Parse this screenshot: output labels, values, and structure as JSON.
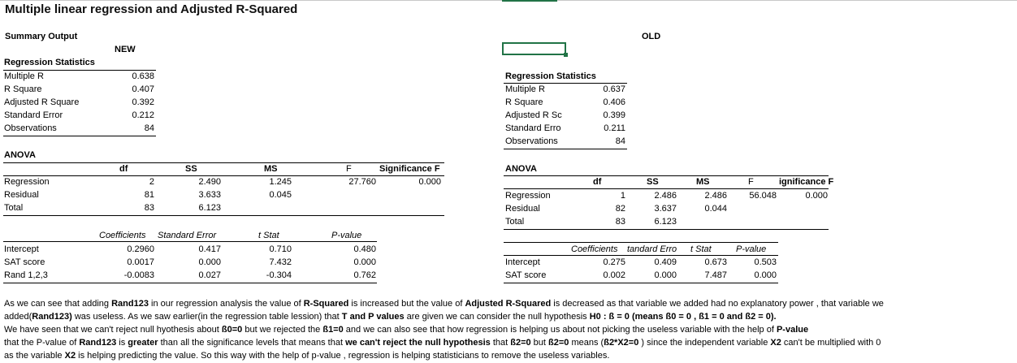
{
  "title": "Multiple linear regression and Adjusted R-Squared",
  "summary_output": "Summary Output",
  "new_label": "NEW",
  "old_label": "OLD",
  "new": {
    "reg_stats_title": "Regression Statistics",
    "stats": [
      {
        "label": "Multiple R",
        "value": "0.638"
      },
      {
        "label": "R Square",
        "value": "0.407"
      },
      {
        "label": "Adjusted R Square",
        "value": "0.392"
      },
      {
        "label": "Standard Error",
        "value": "0.212"
      },
      {
        "label": "Observations",
        "value": "84"
      }
    ],
    "anova_title": "ANOVA",
    "anova_headers": [
      "df",
      "SS",
      "MS",
      "F",
      "Significance F"
    ],
    "anova_rows": [
      {
        "label": "Regression",
        "df": "2",
        "ss": "2.490",
        "ms": "1.245",
        "f": "27.760",
        "sig": "0.000"
      },
      {
        "label": "Residual",
        "df": "81",
        "ss": "3.633",
        "ms": "0.045",
        "f": "",
        "sig": ""
      },
      {
        "label": "Total",
        "df": "83",
        "ss": "6.123",
        "ms": "",
        "f": "",
        "sig": ""
      }
    ],
    "coef_headers": [
      "Coefficients",
      "Standard Error",
      "t Stat",
      "P-value"
    ],
    "coef_rows": [
      {
        "label": "Intercept",
        "coef": "0.2960",
        "se": "0.417",
        "t": "0.710",
        "p": "0.480"
      },
      {
        "label": "SAT score",
        "coef": "0.0017",
        "se": "0.000",
        "t": "7.432",
        "p": "0.000"
      },
      {
        "label": "Rand 1,2,3",
        "coef": "-0.0083",
        "se": "0.027",
        "t": "-0.304",
        "p": "0.762"
      }
    ]
  },
  "old": {
    "reg_stats_title": "Regression Statistics",
    "stats": [
      {
        "label": "Multiple R",
        "value": "0.637"
      },
      {
        "label": "R Square",
        "value": "0.406"
      },
      {
        "label": "Adjusted R Sc",
        "value": "0.399"
      },
      {
        "label": "Standard Erro",
        "value": "0.211"
      },
      {
        "label": "Observations",
        "value": "84"
      }
    ],
    "anova_title": "ANOVA",
    "anova_headers": [
      "df",
      "SS",
      "MS",
      "F",
      "ignificance F"
    ],
    "anova_rows": [
      {
        "label": "Regression",
        "df": "1",
        "ss": "2.486",
        "ms": "2.486",
        "f": "56.048",
        "sig": "0.000"
      },
      {
        "label": "Residual",
        "df": "82",
        "ss": "3.637",
        "ms": "0.044",
        "f": "",
        "sig": ""
      },
      {
        "label": "Total",
        "df": "83",
        "ss": "6.123",
        "ms": "",
        "f": "",
        "sig": ""
      }
    ],
    "coef_headers": [
      "Coefficients",
      "tandard Erro",
      "t Stat",
      "P-value"
    ],
    "coef_rows": [
      {
        "label": "Intercept",
        "coef": "0.275",
        "se": "0.409",
        "t": "0.673",
        "p": "0.503"
      },
      {
        "label": "SAT score",
        "coef": "0.002",
        "se": "0.000",
        "t": "7.487",
        "p": "0.000"
      }
    ]
  },
  "paragraph": {
    "l1a": "As we can see that adding ",
    "l1b": "Rand123",
    "l1c": " in our regression analysis the value of ",
    "l1d": "R-Squared",
    "l1e": " is increased but the value of ",
    "l1f": "Adjusted R-Squared",
    "l1g": " is decreased as that variable we added had no explanatory power , that variable we",
    "l2a": "added(",
    "l2b": "Rand123)",
    "l2c": " was useless. As we saw earlier(in the regression table lession) that ",
    "l2d": "T and P values",
    "l2e": " are given we can consider the null hypothesis ",
    "l2f": "H0 : ß = 0 (means ß0 = 0 , ß1 = 0 and ß2 = 0).",
    "l3a": "We have seen that we can't reject null hyothesis about ",
    "l3b": "ß0=0",
    "l3c": " but we rejected the ",
    "l3d": "ß1=0",
    "l3e": " and we can also see that how regression is helping us about not picking the useless variable with the help of ",
    "l3f": "P-value",
    "l4a": "that the P-value of ",
    "l4b": "Rand123",
    "l4c": " is ",
    "l4d": "greater",
    "l4e": " than all the significance levels that means that ",
    "l4f": "we can't reject the null hypothesis",
    "l4g": " that ",
    "l4h": "ß2=0",
    "l4i": " but ",
    "l4j": "ß2=0",
    "l4k": " means (",
    "l4l": "ß2*X2=0",
    "l4m": " ) since the independent variable ",
    "l4n": "X2",
    "l4o": "  can't be multiplied with 0",
    "l5a": "as the variable ",
    "l5b": "X2",
    "l5c": " is helping predicting the value. So this way with the help of p-value , regression is helping statisticians to remove the useless variables."
  }
}
